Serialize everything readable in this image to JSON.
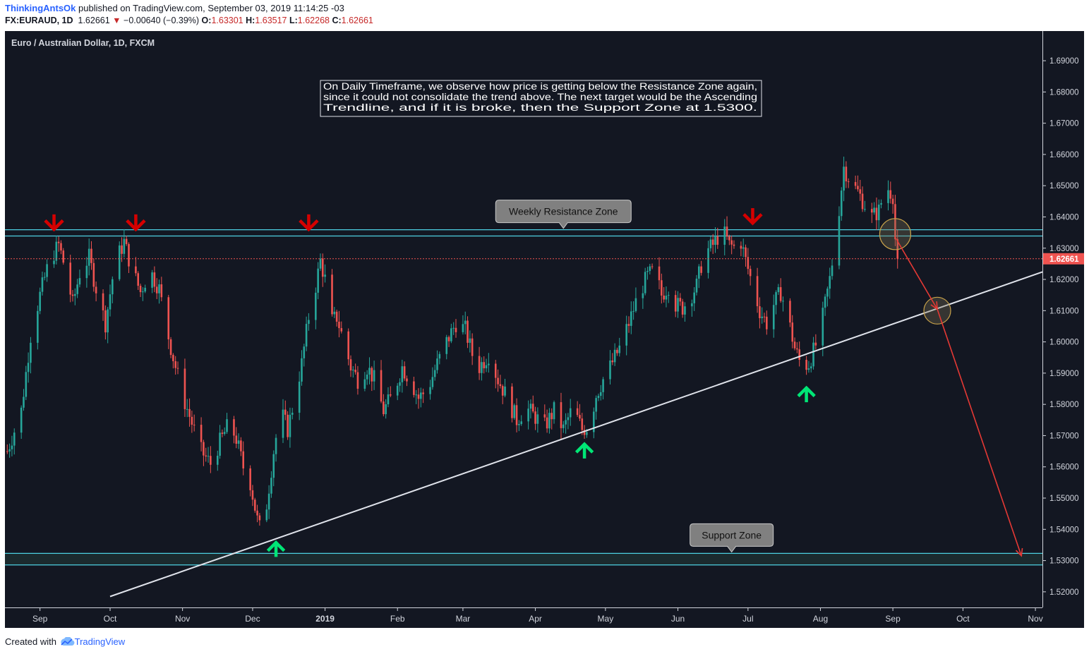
{
  "header": {
    "author": "ThinkingAntsOk",
    "published": "published on TradingView.com, September 03, 2019 11:14:25 -03",
    "symbol": "FX:EURAUD, 1D",
    "last": "1.62661",
    "change_arrow": "▼",
    "change": "−0.00640 (−0.39%)",
    "open_label": "O:",
    "open": "1.63301",
    "high_label": "H:",
    "high": "1.63517",
    "low_label": "L:",
    "low": "1.62268",
    "close_label": "C:",
    "close": "1.62661"
  },
  "footer": {
    "created_with": "Created with",
    "brand": "TradingView",
    "icon": "tradingview-cloud-icon"
  },
  "colors": {
    "background": "#131722",
    "up": "#26a69a",
    "down": "#ef5350",
    "zone": "#4dd0e1",
    "trendline": "#e0e3eb",
    "projection": "#e53935",
    "price_line": "#ef5350",
    "signal_down": "#d50000",
    "signal_up": "#00e676",
    "highlight_circle": "#c8a24a"
  },
  "chart_data": {
    "type": "candlestick",
    "title": "Euro / Australian Dollar, 1D, FXCM",
    "annotation": "On Daily Timeframe, we observe how price is getting below the Resistance Zone again, since it could not consolidate the trend above. The next target would be the Ascending Trendline, and if it is broke, then the Support Zone at 1.5300.",
    "ylim": [
      1.515,
      1.6995
    ],
    "y_ticks": [
      "1.69000",
      "1.68000",
      "1.67000",
      "1.66000",
      "1.65000",
      "1.64000",
      "1.63000",
      "1.62000",
      "1.61000",
      "1.60000",
      "1.59000",
      "1.58000",
      "1.57000",
      "1.56000",
      "1.55000",
      "1.54000",
      "1.53000",
      "1.52000"
    ],
    "x_ticks": [
      {
        "label": "Sep",
        "day": 8
      },
      {
        "label": "Oct",
        "day": 38
      },
      {
        "label": "Nov",
        "day": 69
      },
      {
        "label": "Dec",
        "day": 99
      },
      {
        "label": "2019",
        "day": 130
      },
      {
        "label": "Feb",
        "day": 161
      },
      {
        "label": "Mar",
        "day": 189
      },
      {
        "label": "Apr",
        "day": 220
      },
      {
        "label": "May",
        "day": 250
      },
      {
        "label": "Jun",
        "day": 281
      },
      {
        "label": "Jul",
        "day": 311
      },
      {
        "label": "Aug",
        "day": 342
      },
      {
        "label": "Sep",
        "day": 373
      },
      {
        "label": "Oct",
        "day": 403
      },
      {
        "label": "Nov",
        "day": 434
      }
    ],
    "x_range_days": [
      -7,
      437
    ],
    "last_price": "1.62661",
    "resistance_zone": {
      "label": "Weekly Resistance Zone",
      "high": 1.6359,
      "low": 1.6339,
      "label_day": 232
    },
    "support_zone": {
      "label": "Support Zone",
      "high": 1.5323,
      "low": 1.5286,
      "label_day": 304
    },
    "trendline": {
      "from": {
        "day": 38,
        "price": 1.5185
      },
      "to": {
        "day": 437,
        "price": 1.6224
      }
    },
    "projection": [
      {
        "day": 374,
        "price": 1.6335
      },
      {
        "day": 392,
        "price": 1.6105
      },
      {
        "day": 428,
        "price": 1.5315
      }
    ],
    "highlight_circles": [
      {
        "day": 374,
        "price": 1.6345
      },
      {
        "day": 392,
        "price": 1.61
      }
    ],
    "signals": [
      {
        "dir": "down",
        "day": 14,
        "price": 1.6385
      },
      {
        "dir": "down",
        "day": 49,
        "price": 1.6385
      },
      {
        "dir": "down",
        "day": 123,
        "price": 1.6385
      },
      {
        "dir": "down",
        "day": 313,
        "price": 1.6405
      },
      {
        "dir": "up",
        "day": 109,
        "price": 1.5335
      },
      {
        "dir": "up",
        "day": 241,
        "price": 1.565
      },
      {
        "dir": "up",
        "day": 336,
        "price": 1.583
      }
    ],
    "path_points": [
      [
        -6,
        1.565
      ],
      [
        0,
        1.578
      ],
      [
        4,
        1.602
      ],
      [
        8,
        1.615
      ],
      [
        12,
        1.626
      ],
      [
        16,
        1.631
      ],
      [
        19,
        1.623
      ],
      [
        22,
        1.612
      ],
      [
        25,
        1.622
      ],
      [
        29,
        1.627
      ],
      [
        33,
        1.614
      ],
      [
        36,
        1.606
      ],
      [
        40,
        1.625
      ],
      [
        44,
        1.632
      ],
      [
        47,
        1.624
      ],
      [
        51,
        1.616
      ],
      [
        55,
        1.623
      ],
      [
        59,
        1.617
      ],
      [
        62,
        1.605
      ],
      [
        65,
        1.595
      ],
      [
        69,
        1.583
      ],
      [
        73,
        1.574
      ],
      [
        77,
        1.565
      ],
      [
        81,
        1.561
      ],
      [
        85,
        1.568
      ],
      [
        89,
        1.574
      ],
      [
        92,
        1.569
      ],
      [
        95,
        1.56
      ],
      [
        98,
        1.555
      ],
      [
        101,
        1.543
      ],
      [
        103,
        1.538
      ],
      [
        105,
        1.548
      ],
      [
        108,
        1.565
      ],
      [
        111,
        1.578
      ],
      [
        114,
        1.572
      ],
      [
        117,
        1.582
      ],
      [
        120,
        1.593
      ],
      [
        123,
        1.608
      ],
      [
        126,
        1.618
      ],
      [
        128,
        1.626
      ],
      [
        130,
        1.62
      ],
      [
        132,
        1.606
      ],
      [
        135,
        1.608
      ],
      [
        138,
        1.6
      ],
      [
        141,
        1.592
      ],
      [
        144,
        1.588
      ],
      [
        148,
        1.592
      ],
      [
        151,
        1.588
      ],
      [
        155,
        1.578
      ],
      [
        159,
        1.583
      ],
      [
        163,
        1.592
      ],
      [
        167,
        1.587
      ],
      [
        170,
        1.582
      ],
      [
        174,
        1.585
      ],
      [
        178,
        1.593
      ],
      [
        182,
        1.6
      ],
      [
        186,
        1.606
      ],
      [
        190,
        1.604
      ],
      [
        193,
        1.596
      ],
      [
        196,
        1.592
      ],
      [
        200,
        1.596
      ],
      [
        204,
        1.588
      ],
      [
        208,
        1.582
      ],
      [
        212,
        1.575
      ],
      [
        216,
        1.579
      ],
      [
        220,
        1.576
      ],
      [
        224,
        1.573
      ],
      [
        228,
        1.578
      ],
      [
        232,
        1.572
      ],
      [
        236,
        1.579
      ],
      [
        240,
        1.572
      ],
      [
        243,
        1.573
      ],
      [
        246,
        1.583
      ],
      [
        249,
        1.588
      ],
      [
        252,
        1.592
      ],
      [
        256,
        1.598
      ],
      [
        260,
        1.606
      ],
      [
        264,
        1.615
      ],
      [
        268,
        1.621
      ],
      [
        271,
        1.623
      ],
      [
        274,
        1.615
      ],
      [
        277,
        1.618
      ],
      [
        280,
        1.612
      ],
      [
        283,
        1.611
      ],
      [
        286,
        1.614
      ],
      [
        289,
        1.618
      ],
      [
        292,
        1.628
      ],
      [
        296,
        1.631
      ],
      [
        300,
        1.636
      ],
      [
        303,
        1.631
      ],
      [
        306,
        1.63
      ],
      [
        308,
        1.632
      ],
      [
        310,
        1.626
      ],
      [
        313,
        1.618
      ],
      [
        316,
        1.61
      ],
      [
        319,
        1.606
      ],
      [
        322,
        1.612
      ],
      [
        325,
        1.616
      ],
      [
        328,
        1.608
      ],
      [
        331,
        1.598
      ],
      [
        334,
        1.592
      ],
      [
        337,
        1.593
      ],
      [
        340,
        1.599
      ],
      [
        343,
        1.608
      ],
      [
        346,
        1.62
      ],
      [
        349,
        1.636
      ],
      [
        352,
        1.656
      ],
      [
        355,
        1.651
      ],
      [
        358,
        1.648
      ],
      [
        361,
        1.644
      ],
      [
        364,
        1.64
      ],
      [
        367,
        1.642
      ],
      [
        370,
        1.65
      ],
      [
        373,
        1.647
      ],
      [
        374,
        1.633
      ],
      [
        375,
        1.6266
      ]
    ]
  }
}
